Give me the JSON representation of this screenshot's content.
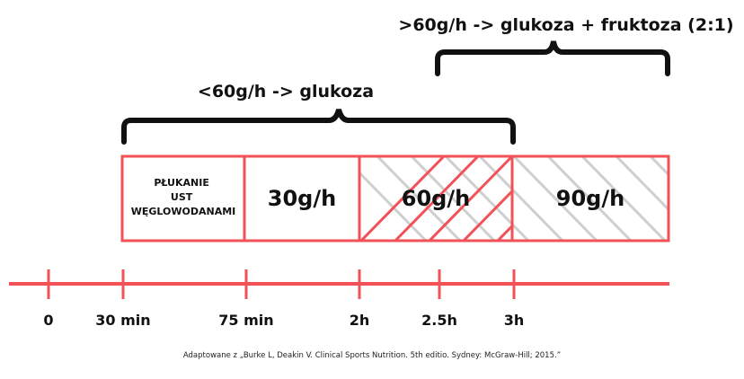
{
  "colors": {
    "accent": "#f25257",
    "hatch_gray": "#cccccc",
    "text": "#111111"
  },
  "brackets": [
    {
      "label": "<60g/h -> glukoza",
      "from": "30 min",
      "to": "3h"
    },
    {
      "label": ">60g/h -> glukoza + fruktoza (2:1)",
      "from": "2.5h",
      "to": "3h+"
    }
  ],
  "segments": [
    {
      "label_lines": [
        "PŁUKANIE",
        "UST",
        "WĘGLOWODANAMI"
      ],
      "pattern": "none"
    },
    {
      "label": "30g/h",
      "pattern": "none"
    },
    {
      "label": "60g/h",
      "pattern": "red-hatch"
    },
    {
      "label": "90g/h",
      "pattern": "gray-hatch"
    }
  ],
  "timeline": {
    "ticks": [
      "0",
      "30 min",
      "75 min",
      "2h",
      "2.5h",
      "3h"
    ]
  },
  "citation": "Adaptowane z „Burke L, Deakin V. Clinical Sports Nutrition. 5th editio. Sydney: McGraw-Hill; 2015.”"
}
